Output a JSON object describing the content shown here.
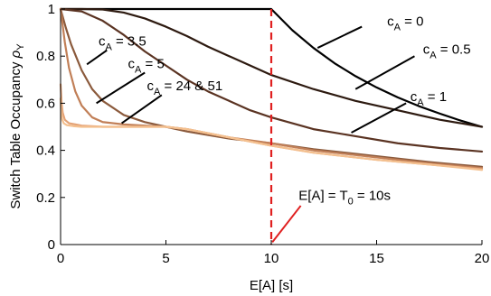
{
  "chart_data": {
    "type": "line",
    "xlabel": "E[A] [s]",
    "ylabel_main": "Switch Table Occupancy ",
    "ylabel_symbol": "ρ",
    "ylabel_sub": "Y",
    "xlim": [
      0,
      20
    ],
    "ylim": [
      0,
      1
    ],
    "xticks": [
      0,
      5,
      10,
      15,
      20
    ],
    "yticks": [
      0,
      0.2,
      0.4,
      0.6,
      0.8,
      1
    ],
    "xtick_labels": [
      "0",
      "5",
      "10",
      "15",
      "20"
    ],
    "ytick_labels": [
      "0",
      "0.2",
      "0.4",
      "0.6",
      "0.8",
      "1"
    ],
    "grid": false,
    "series": [
      {
        "name": "cA = 0",
        "color": "#000000",
        "x": [
          0,
          10,
          11,
          12,
          13,
          14,
          15,
          16,
          17,
          18,
          19,
          20
        ],
        "y": [
          1.0,
          1.0,
          0.91,
          0.835,
          0.77,
          0.715,
          0.667,
          0.625,
          0.588,
          0.556,
          0.526,
          0.5
        ]
      },
      {
        "name": "cA = 0.5",
        "color": "#2d1a10",
        "x": [
          0,
          1,
          2,
          3,
          4,
          5,
          6,
          7,
          8,
          9,
          10,
          12,
          14,
          16,
          18,
          20
        ],
        "y": [
          1.0,
          1.0,
          0.998,
          0.985,
          0.96,
          0.925,
          0.885,
          0.84,
          0.8,
          0.76,
          0.72,
          0.66,
          0.61,
          0.57,
          0.53,
          0.5
        ]
      },
      {
        "name": "cA = 1",
        "color": "#5a3322",
        "x": [
          0,
          1,
          2,
          3,
          4,
          5,
          6,
          7,
          8,
          9,
          10,
          12,
          14,
          16,
          18,
          20
        ],
        "y": [
          1.0,
          0.99,
          0.95,
          0.89,
          0.82,
          0.76,
          0.7,
          0.65,
          0.61,
          0.57,
          0.54,
          0.49,
          0.46,
          0.43,
          0.41,
          0.395
        ]
      },
      {
        "name": "cA = 3.5",
        "color": "#8b5a3c",
        "x": [
          0,
          0.25,
          0.5,
          1,
          1.5,
          2,
          3,
          4,
          5,
          6,
          8,
          10,
          12,
          15,
          17.5,
          20
        ],
        "y": [
          1.0,
          0.92,
          0.85,
          0.74,
          0.66,
          0.61,
          0.55,
          0.52,
          0.5,
          0.48,
          0.45,
          0.43,
          0.405,
          0.375,
          0.35,
          0.33
        ]
      },
      {
        "name": "cA = 5",
        "color": "#c17f57",
        "x": [
          0,
          0.2,
          0.4,
          0.7,
          1,
          1.5,
          2,
          3,
          4,
          5,
          6,
          8,
          10,
          12,
          15,
          17.5,
          20
        ],
        "y": [
          1.0,
          0.86,
          0.75,
          0.65,
          0.59,
          0.54,
          0.52,
          0.51,
          0.505,
          0.5,
          0.49,
          0.455,
          0.43,
          0.4,
          0.37,
          0.345,
          0.325
        ]
      },
      {
        "name": "cA = 24",
        "color": "#e3a276",
        "x": [
          0,
          0.05,
          0.1,
          0.2,
          0.4,
          0.7,
          1,
          2,
          3,
          4,
          5,
          6,
          8,
          10,
          12,
          15,
          17.5,
          20
        ],
        "y": [
          0.68,
          0.6,
          0.56,
          0.53,
          0.515,
          0.51,
          0.505,
          0.5,
          0.5,
          0.5,
          0.5,
          0.49,
          0.455,
          0.42,
          0.39,
          0.36,
          0.34,
          0.32
        ]
      },
      {
        "name": "cA = 51",
        "color": "#f4c08f",
        "x": [
          0,
          0.03,
          0.08,
          0.15,
          0.3,
          0.6,
          1,
          2,
          3,
          4,
          5,
          6,
          8,
          10,
          12,
          15,
          17.5,
          20
        ],
        "y": [
          0.62,
          0.56,
          0.53,
          0.515,
          0.507,
          0.503,
          0.5,
          0.5,
          0.5,
          0.5,
          0.5,
          0.49,
          0.455,
          0.42,
          0.39,
          0.36,
          0.34,
          0.317
        ]
      }
    ],
    "vline": {
      "x": 10,
      "color": "#e02020"
    },
    "annotations": [
      {
        "name": "annot-ca-0",
        "pre": "c",
        "sub": "A",
        "post": " = 0",
        "tx": 15.5,
        "ty": 0.93,
        "ax": 14.3,
        "ay": 0.925,
        "bx": 12.2,
        "by": 0.835
      },
      {
        "name": "annot-ca-05",
        "pre": "c",
        "sub": "A",
        "post": " = 0.5",
        "tx": 17.2,
        "ty": 0.81,
        "ax": 16.8,
        "ay": 0.8,
        "bx": 14.0,
        "by": 0.66
      },
      {
        "name": "annot-ca-1",
        "pre": "c",
        "sub": "A",
        "post": " = 1",
        "tx": 16.6,
        "ty": 0.61,
        "ax": 16.4,
        "ay": 0.6,
        "bx": 13.8,
        "by": 0.475
      },
      {
        "name": "annot-ca-35",
        "pre": "c",
        "sub": "A",
        "post": " = 3.5",
        "tx": 1.8,
        "ty": 0.845,
        "ax": 2.2,
        "ay": 0.825,
        "bx": 1.25,
        "by": 0.765
      },
      {
        "name": "annot-ca-5",
        "pre": "c",
        "sub": "A",
        "post": " = 5",
        "tx": 3.2,
        "ty": 0.75,
        "ax": 4.0,
        "ay": 0.73,
        "bx": 1.7,
        "by": 0.6
      },
      {
        "name": "annot-ca-24-51",
        "pre": "c",
        "sub": "A",
        "post": " = 24 & 51",
        "tx": 4.1,
        "ty": 0.655,
        "ax": 4.8,
        "ay": 0.635,
        "bx": 2.9,
        "by": 0.515
      },
      {
        "name": "annot-vline",
        "pre": "E[A] = T",
        "sub": "0",
        "post": " = 10s",
        "tx": 11.3,
        "ty": 0.19,
        "ax": 11.4,
        "ay": 0.165,
        "bx": 10.05,
        "by": 0.01,
        "color": "#e02020"
      }
    ]
  }
}
